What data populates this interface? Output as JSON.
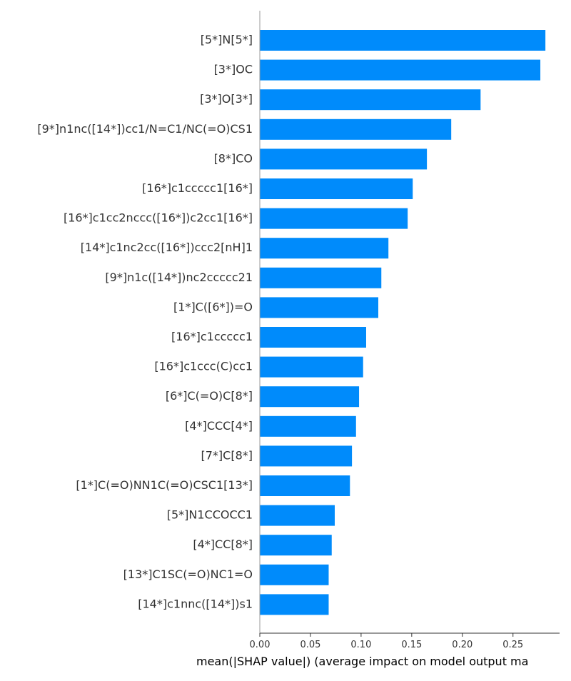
{
  "chart_data": {
    "type": "bar",
    "orientation": "horizontal",
    "title": "",
    "xlabel": "mean(|SHAP value|) (average impact on model output ma",
    "ylabel": "",
    "xlim": [
      0,
      0.296
    ],
    "xticks": [
      "0.00",
      "0.05",
      "0.10",
      "0.15",
      "0.20",
      "0.25"
    ],
    "xtick_values": [
      0,
      0.05,
      0.1,
      0.15,
      0.2,
      0.25
    ],
    "bar_color": "#008bfb",
    "grid": false,
    "categories": [
      "[5*]N[5*]",
      "[3*]OC",
      "[3*]O[3*]",
      "[9*]n1nc([14*])cc1/N=C1/NC(=O)CS1",
      "[8*]CO",
      "[16*]c1ccccc1[16*]",
      "[16*]c1cc2nccc([16*])c2cc1[16*]",
      "[14*]c1nc2cc([16*])ccc2[nH]1",
      "[9*]n1c([14*])nc2ccccc21",
      "[1*]C([6*])=O",
      "[16*]c1ccccc1",
      "[16*]c1ccc(C)cc1",
      "[6*]C(=O)C[8*]",
      "[4*]CCC[4*]",
      "[7*]C[8*]",
      "[1*]C(=O)NN1C(=O)CSC1[13*]",
      "[5*]N1CCOCC1",
      "[4*]CC[8*]",
      "[13*]C1SC(=O)NC1=O",
      "[14*]c1nnc([14*])s1"
    ],
    "values": [
      0.282,
      0.277,
      0.218,
      0.189,
      0.165,
      0.151,
      0.146,
      0.127,
      0.12,
      0.117,
      0.105,
      0.102,
      0.098,
      0.095,
      0.091,
      0.089,
      0.074,
      0.071,
      0.068,
      0.068
    ]
  }
}
